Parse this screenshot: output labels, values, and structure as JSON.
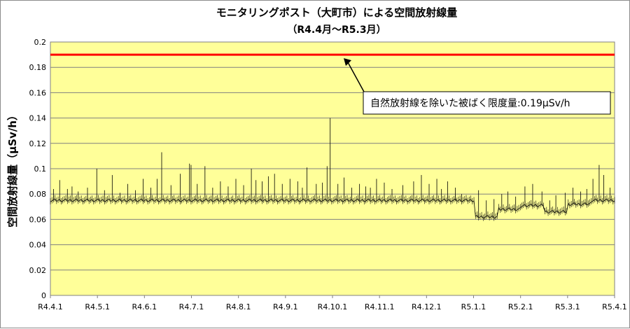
{
  "chart_data": {
    "type": "line",
    "title": "モニタリングポスト（大町市）による空間放射線量",
    "subtitle": "（R4.4月～R5.3月）",
    "xlabel": "",
    "ylabel": "空間放射線量（μSv/h）",
    "ylim": [
      0,
      0.2
    ],
    "yticks": [
      "0",
      "0.02",
      "0.04",
      "0.06",
      "0.08",
      "0.1",
      "0.12",
      "0.14",
      "0.16",
      "0.18",
      "0.2"
    ],
    "xticks": [
      "R4.4.1",
      "R4.5.1",
      "R4.6.1",
      "R4.7.1",
      "R4.8.1",
      "R4.9.1",
      "R4.10.1",
      "R4.11.1",
      "R4.12.1",
      "R5.1.1",
      "R5.2.1",
      "R5.3.1",
      "R5.4.1"
    ],
    "grid": true,
    "plot_background": "#ffff99",
    "series_color": "#000000",
    "limit_line": {
      "value": 0.19,
      "color": "#ff0000"
    },
    "annotation": {
      "text": "自然放射線を除いた被ばく限度量:0.19μSv/h"
    },
    "series": [
      {
        "baseline_segments": [
          {
            "from_day": 0,
            "to_day": 275,
            "value": 0.075
          },
          {
            "from_day": 275,
            "to_day": 290,
            "value": 0.062
          },
          {
            "from_day": 290,
            "to_day": 305,
            "value": 0.068
          },
          {
            "from_day": 305,
            "to_day": 320,
            "value": 0.071
          },
          {
            "from_day": 320,
            "to_day": 335,
            "value": 0.066
          },
          {
            "from_day": 335,
            "to_day": 350,
            "value": 0.072
          },
          {
            "from_day": 350,
            "to_day": 365,
            "value": 0.075
          }
        ],
        "spikes": [
          {
            "day": 2,
            "value": 0.084
          },
          {
            "day": 6,
            "value": 0.091
          },
          {
            "day": 11,
            "value": 0.084
          },
          {
            "day": 14,
            "value": 0.086
          },
          {
            "day": 18,
            "value": 0.082
          },
          {
            "day": 24,
            "value": 0.085
          },
          {
            "day": 30,
            "value": 0.1
          },
          {
            "day": 35,
            "value": 0.083
          },
          {
            "day": 40,
            "value": 0.095
          },
          {
            "day": 45,
            "value": 0.081
          },
          {
            "day": 50,
            "value": 0.088
          },
          {
            "day": 55,
            "value": 0.083
          },
          {
            "day": 60,
            "value": 0.092
          },
          {
            "day": 65,
            "value": 0.085
          },
          {
            "day": 69,
            "value": 0.092
          },
          {
            "day": 72,
            "value": 0.113
          },
          {
            "day": 78,
            "value": 0.087
          },
          {
            "day": 84,
            "value": 0.096
          },
          {
            "day": 90,
            "value": 0.104
          },
          {
            "day": 91,
            "value": 0.103
          },
          {
            "day": 95,
            "value": 0.088
          },
          {
            "day": 100,
            "value": 0.102
          },
          {
            "day": 105,
            "value": 0.085
          },
          {
            "day": 110,
            "value": 0.09
          },
          {
            "day": 115,
            "value": 0.086
          },
          {
            "day": 120,
            "value": 0.092
          },
          {
            "day": 125,
            "value": 0.087
          },
          {
            "day": 130,
            "value": 0.1
          },
          {
            "day": 133,
            "value": 0.091
          },
          {
            "day": 137,
            "value": 0.09
          },
          {
            "day": 141,
            "value": 0.094
          },
          {
            "day": 145,
            "value": 0.096
          },
          {
            "day": 150,
            "value": 0.088
          },
          {
            "day": 155,
            "value": 0.092
          },
          {
            "day": 160,
            "value": 0.09
          },
          {
            "day": 163,
            "value": 0.085
          },
          {
            "day": 166,
            "value": 0.101
          },
          {
            "day": 172,
            "value": 0.088
          },
          {
            "day": 176,
            "value": 0.089
          },
          {
            "day": 179,
            "value": 0.102
          },
          {
            "day": 181,
            "value": 0.14
          },
          {
            "day": 186,
            "value": 0.088
          },
          {
            "day": 190,
            "value": 0.093
          },
          {
            "day": 195,
            "value": 0.085
          },
          {
            "day": 200,
            "value": 0.088
          },
          {
            "day": 204,
            "value": 0.086
          },
          {
            "day": 207,
            "value": 0.085
          },
          {
            "day": 211,
            "value": 0.092
          },
          {
            "day": 216,
            "value": 0.089
          },
          {
            "day": 221,
            "value": 0.084
          },
          {
            "day": 228,
            "value": 0.087
          },
          {
            "day": 235,
            "value": 0.09
          },
          {
            "day": 240,
            "value": 0.095
          },
          {
            "day": 245,
            "value": 0.088
          },
          {
            "day": 250,
            "value": 0.092
          },
          {
            "day": 253,
            "value": 0.084
          },
          {
            "day": 257,
            "value": 0.09
          },
          {
            "day": 262,
            "value": 0.085
          },
          {
            "day": 266,
            "value": 0.08
          },
          {
            "day": 272,
            "value": 0.075
          },
          {
            "day": 277,
            "value": 0.083
          },
          {
            "day": 282,
            "value": 0.075
          },
          {
            "day": 287,
            "value": 0.076
          },
          {
            "day": 292,
            "value": 0.08
          },
          {
            "day": 296,
            "value": 0.082
          },
          {
            "day": 301,
            "value": 0.078
          },
          {
            "day": 307,
            "value": 0.086
          },
          {
            "day": 312,
            "value": 0.088
          },
          {
            "day": 318,
            "value": 0.082
          },
          {
            "day": 323,
            "value": 0.075
          },
          {
            "day": 327,
            "value": 0.079
          },
          {
            "day": 333,
            "value": 0.081
          },
          {
            "day": 338,
            "value": 0.085
          },
          {
            "day": 343,
            "value": 0.082
          },
          {
            "day": 347,
            "value": 0.084
          },
          {
            "day": 351,
            "value": 0.092
          },
          {
            "day": 355,
            "value": 0.103
          },
          {
            "day": 358,
            "value": 0.095
          },
          {
            "day": 362,
            "value": 0.085
          }
        ]
      }
    ]
  }
}
